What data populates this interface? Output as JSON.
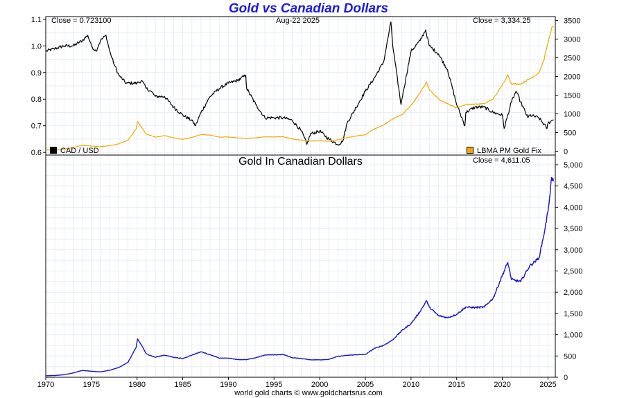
{
  "title": "Gold vs Canadian Dollars",
  "top_panel": {
    "left_readout": "Close = 0.723100",
    "date": "Aug-22  2025",
    "right_readout": "Close = 3,334.25",
    "left_legend": "CAD / USD",
    "right_legend": "LBMA PM Gold Fix"
  },
  "bottom_panel": {
    "title": "Gold In Canadian Dollars",
    "readout": "Close = 4,611.05"
  },
  "credit": "world gold charts © www.goldchartsrus.com",
  "colors": {
    "cad": "#000000",
    "gold_usd": "#f2a900",
    "gold_cad": "#1414d2",
    "title": "#1a1ae6",
    "grid": "#e8eef4"
  },
  "chart_data": [
    {
      "type": "line",
      "title": "Gold vs Canadian Dollars",
      "x_ticks": [
        1970,
        1975,
        1980,
        1985,
        1990,
        1995,
        2000,
        2005,
        2010,
        2015,
        2020,
        2025
      ],
      "y_left_ticks": [
        "0.6",
        "0.7",
        "0.8",
        "0.9",
        "1.0",
        "1.1"
      ],
      "y_left_range": [
        0.59,
        1.11
      ],
      "y_right_ticks": [
        "0",
        "500",
        "1000",
        "1500",
        "2000",
        "2500",
        "3000",
        "3500"
      ],
      "y_right_range": [
        -100,
        3600
      ],
      "grid": true,
      "series": [
        {
          "name": "CAD / USD",
          "axis": "left",
          "color": "#000000",
          "points": [
            [
              1970,
              0.98
            ],
            [
              1971,
              0.99
            ],
            [
              1972,
              1.0
            ],
            [
              1973,
              1.0
            ],
            [
              1974,
              1.02
            ],
            [
              1974.6,
              1.04
            ],
            [
              1975,
              1.0
            ],
            [
              1975.5,
              0.98
            ],
            [
              1976,
              1.02
            ],
            [
              1976.6,
              1.04
            ],
            [
              1977,
              0.98
            ],
            [
              1977.5,
              0.93
            ],
            [
              1978,
              0.89
            ],
            [
              1978.8,
              0.86
            ],
            [
              1979,
              0.86
            ],
            [
              1980,
              0.86
            ],
            [
              1980.5,
              0.87
            ],
            [
              1981,
              0.84
            ],
            [
              1981.5,
              0.83
            ],
            [
              1982,
              0.81
            ],
            [
              1983,
              0.81
            ],
            [
              1984,
              0.77
            ],
            [
              1985,
              0.74
            ],
            [
              1986,
              0.72
            ],
            [
              1986.4,
              0.7
            ],
            [
              1987,
              0.75
            ],
            [
              1988,
              0.81
            ],
            [
              1989,
              0.84
            ],
            [
              1990,
              0.86
            ],
            [
              1991,
              0.87
            ],
            [
              1991.9,
              0.89
            ],
            [
              1992,
              0.84
            ],
            [
              1993,
              0.78
            ],
            [
              1994,
              0.73
            ],
            [
              1995,
              0.73
            ],
            [
              1996,
              0.73
            ],
            [
              1997,
              0.72
            ],
            [
              1998,
              0.68
            ],
            [
              1998.6,
              0.63
            ],
            [
              1999,
              0.67
            ],
            [
              2000,
              0.68
            ],
            [
              2001,
              0.65
            ],
            [
              2002,
              0.63
            ],
            [
              2002.5,
              0.64
            ],
            [
              2003,
              0.71
            ],
            [
              2004,
              0.77
            ],
            [
              2005,
              0.83
            ],
            [
              2006,
              0.88
            ],
            [
              2007,
              0.94
            ],
            [
              2007.8,
              1.09
            ],
            [
              2008,
              1.0
            ],
            [
              2008.9,
              0.78
            ],
            [
              2009,
              0.8
            ],
            [
              2010,
              0.98
            ],
            [
              2011,
              1.02
            ],
            [
              2011.6,
              1.06
            ],
            [
              2012,
              1.0
            ],
            [
              2013,
              0.97
            ],
            [
              2014,
              0.91
            ],
            [
              2015,
              0.78
            ],
            [
              2015.9,
              0.7
            ],
            [
              2016,
              0.75
            ],
            [
              2017,
              0.77
            ],
            [
              2018,
              0.77
            ],
            [
              2019,
              0.75
            ],
            [
              2020,
              0.74
            ],
            [
              2020.2,
              0.69
            ],
            [
              2021,
              0.79
            ],
            [
              2021.5,
              0.83
            ],
            [
              2022,
              0.79
            ],
            [
              2022.8,
              0.73
            ],
            [
              2023,
              0.74
            ],
            [
              2024,
              0.73
            ],
            [
              2024.9,
              0.69
            ],
            [
              2025,
              0.71
            ],
            [
              2025.6,
              0.723
            ]
          ]
        },
        {
          "name": "LBMA PM Gold Fix",
          "axis": "right",
          "color": "#f2a900",
          "points": [
            [
              1970,
              35
            ],
            [
              1971,
              40
            ],
            [
              1972,
              60
            ],
            [
              1973,
              100
            ],
            [
              1974,
              160
            ],
            [
              1975,
              140
            ],
            [
              1976,
              125
            ],
            [
              1977,
              150
            ],
            [
              1978,
              200
            ],
            [
              1979,
              300
            ],
            [
              1979.9,
              600
            ],
            [
              1980.05,
              800
            ],
            [
              1980.5,
              640
            ],
            [
              1981,
              460
            ],
            [
              1982,
              380
            ],
            [
              1983,
              420
            ],
            [
              1984,
              360
            ],
            [
              1985,
              320
            ],
            [
              1986,
              370
            ],
            [
              1987,
              450
            ],
            [
              1988,
              430
            ],
            [
              1989,
              380
            ],
            [
              1990,
              385
            ],
            [
              1991,
              360
            ],
            [
              1992,
              345
            ],
            [
              1993,
              360
            ],
            [
              1994,
              385
            ],
            [
              1995,
              385
            ],
            [
              1996,
              390
            ],
            [
              1997,
              330
            ],
            [
              1998,
              295
            ],
            [
              1999,
              275
            ],
            [
              2000,
              280
            ],
            [
              2001,
              270
            ],
            [
              2002,
              310
            ],
            [
              2003,
              365
            ],
            [
              2004,
              410
            ],
            [
              2005,
              445
            ],
            [
              2006,
              600
            ],
            [
              2007,
              700
            ],
            [
              2008,
              870
            ],
            [
              2009,
              975
            ],
            [
              2010,
              1225
            ],
            [
              2011,
              1570
            ],
            [
              2011.7,
              1850
            ],
            [
              2012,
              1650
            ],
            [
              2013,
              1400
            ],
            [
              2014,
              1270
            ],
            [
              2015,
              1160
            ],
            [
              2016,
              1250
            ],
            [
              2017,
              1260
            ],
            [
              2018,
              1270
            ],
            [
              2019,
              1400
            ],
            [
              2020,
              1770
            ],
            [
              2020.6,
              2050
            ],
            [
              2021,
              1800
            ],
            [
              2022,
              1800
            ],
            [
              2023,
              1940
            ],
            [
              2024,
              2100
            ],
            [
              2024.5,
              2400
            ],
            [
              2025,
              2900
            ],
            [
              2025.4,
              3300
            ],
            [
              2025.6,
              3334
            ]
          ]
        }
      ]
    },
    {
      "type": "line",
      "title": "Gold In Canadian Dollars",
      "x_ticks": [
        1970,
        1975,
        1980,
        1985,
        1990,
        1995,
        2000,
        2005,
        2010,
        2015,
        2020,
        2025
      ],
      "y_right_ticks": [
        "0",
        "500",
        "1,000",
        "1,500",
        "2,000",
        "2,500",
        "3,000",
        "3,500",
        "4,000",
        "4,500",
        "5,000"
      ],
      "y_range": [
        0,
        5000
      ],
      "grid": true,
      "series": [
        {
          "name": "Gold In Canadian Dollars",
          "axis": "right",
          "color": "#1414d2",
          "points": [
            [
              1970,
              35
            ],
            [
              1971,
              40
            ],
            [
              1972,
              60
            ],
            [
              1973,
              100
            ],
            [
              1974,
              160
            ],
            [
              1975,
              140
            ],
            [
              1976,
              125
            ],
            [
              1977,
              165
            ],
            [
              1978,
              230
            ],
            [
              1979,
              350
            ],
            [
              1979.9,
              700
            ],
            [
              1980.05,
              900
            ],
            [
              1980.5,
              750
            ],
            [
              1981,
              550
            ],
            [
              1982,
              470
            ],
            [
              1983,
              520
            ],
            [
              1984,
              470
            ],
            [
              1985,
              440
            ],
            [
              1986,
              520
            ],
            [
              1987,
              600
            ],
            [
              1988,
              530
            ],
            [
              1989,
              450
            ],
            [
              1990,
              450
            ],
            [
              1991,
              415
            ],
            [
              1992,
              415
            ],
            [
              1993,
              460
            ],
            [
              1994,
              525
            ],
            [
              1995,
              525
            ],
            [
              1996,
              535
            ],
            [
              1997,
              460
            ],
            [
              1998,
              440
            ],
            [
              1999,
              410
            ],
            [
              2000,
              410
            ],
            [
              2001,
              420
            ],
            [
              2002,
              490
            ],
            [
              2003,
              515
            ],
            [
              2004,
              530
            ],
            [
              2005,
              535
            ],
            [
              2006,
              680
            ],
            [
              2007,
              750
            ],
            [
              2008,
              880
            ],
            [
              2009,
              1100
            ],
            [
              2010,
              1260
            ],
            [
              2011,
              1550
            ],
            [
              2011.7,
              1800
            ],
            [
              2012,
              1650
            ],
            [
              2013,
              1450
            ],
            [
              2014,
              1400
            ],
            [
              2015,
              1480
            ],
            [
              2016,
              1650
            ],
            [
              2017,
              1640
            ],
            [
              2018,
              1650
            ],
            [
              2019,
              1860
            ],
            [
              2020,
              2400
            ],
            [
              2020.6,
              2700
            ],
            [
              2021,
              2300
            ],
            [
              2022,
              2250
            ],
            [
              2023,
              2620
            ],
            [
              2024,
              2800
            ],
            [
              2024.5,
              3300
            ],
            [
              2025,
              3900
            ],
            [
              2025.4,
              4700
            ],
            [
              2025.6,
              4611
            ]
          ]
        }
      ]
    }
  ]
}
